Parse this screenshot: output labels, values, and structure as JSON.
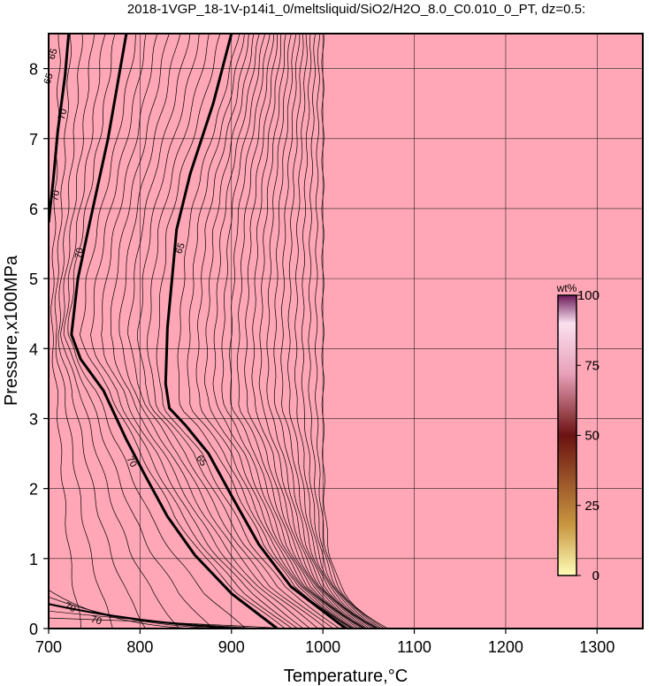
{
  "chart_data": {
    "type": "contour",
    "title": "2018-1VGP_18-1V-p14i1_0/meltsliquid/SiO2/H2O_8.0_C0.010_0_PT, dz=0.5:",
    "xlabel": "Temperature,°C",
    "ylabel": "Pressure,x100MPa",
    "xlim": [
      700,
      1350
    ],
    "ylim": [
      0,
      8.5
    ],
    "x_ticks": [
      700,
      800,
      900,
      1000,
      1100,
      1200,
      1300
    ],
    "y_ticks": [
      0,
      1,
      2,
      3,
      4,
      5,
      6,
      7,
      8
    ],
    "grid": true,
    "background_color": "#ffa7b6",
    "contour_interval": 0.5,
    "contour_labels": [
      "65",
      "70"
    ],
    "bold_contours": [
      {
        "level": 70,
        "points": [
          [
            785,
            8.5
          ],
          [
            765,
            7.0
          ],
          [
            745,
            5.8
          ],
          [
            732,
            5.0
          ],
          [
            725,
            4.2
          ],
          [
            735,
            3.85
          ],
          [
            760,
            3.4
          ],
          [
            785,
            2.7
          ],
          [
            805,
            2.2
          ],
          [
            830,
            1.6
          ],
          [
            860,
            1.05
          ],
          [
            900,
            0.5
          ],
          [
            950,
            0.0
          ]
        ]
      },
      {
        "level": 65,
        "points": [
          [
            900,
            8.5
          ],
          [
            880,
            7.5
          ],
          [
            855,
            6.5
          ],
          [
            840,
            5.7
          ],
          [
            835,
            5.0
          ],
          [
            830,
            4.3
          ],
          [
            828,
            3.5
          ],
          [
            832,
            3.15
          ],
          [
            850,
            2.9
          ],
          [
            875,
            2.5
          ],
          [
            900,
            1.9
          ],
          [
            930,
            1.2
          ],
          [
            965,
            0.6
          ],
          [
            1025,
            0.0
          ]
        ]
      },
      {
        "level": 70,
        "points": [
          [
            700,
            5.8
          ],
          [
            705,
            6.4
          ],
          [
            710,
            7.1
          ],
          [
            718,
            7.9
          ],
          [
            722,
            8.5
          ]
        ]
      }
    ],
    "colorbar": {
      "label": "wt%",
      "range": [
        0,
        100
      ],
      "ticks": [
        0,
        25,
        50,
        75,
        100
      ]
    }
  }
}
